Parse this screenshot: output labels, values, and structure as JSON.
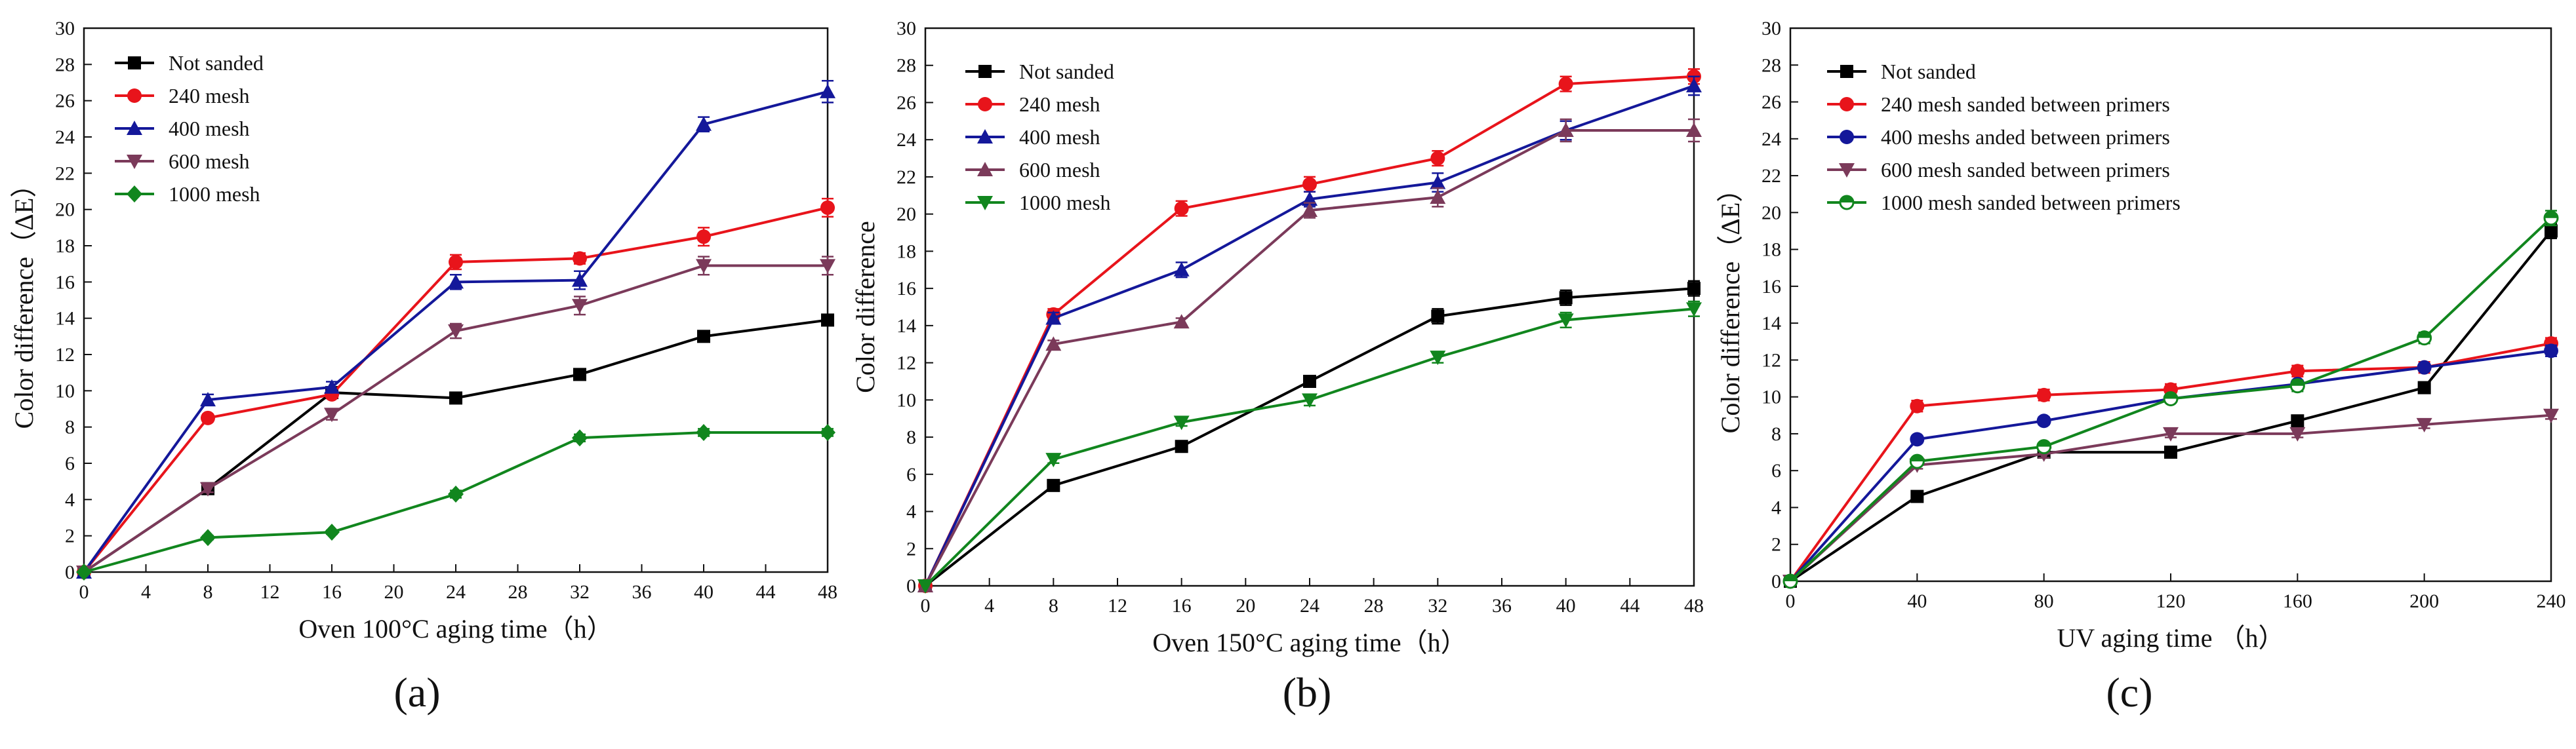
{
  "chart_data": [
    {
      "type": "line",
      "panel_label": "(a)",
      "xlabel": "Oven 100°C aging time（h）",
      "ylabel": "Color difference（ΔE）",
      "xlim": [
        0,
        48
      ],
      "ylim": [
        0,
        30
      ],
      "xticks": [
        0,
        4,
        8,
        12,
        16,
        20,
        24,
        28,
        32,
        36,
        40,
        44,
        48
      ],
      "yticks": [
        0,
        2,
        4,
        6,
        8,
        10,
        12,
        14,
        16,
        18,
        20,
        22,
        24,
        26,
        28,
        30
      ],
      "legend_position": "top-left",
      "x": [
        0,
        8,
        16,
        24,
        32,
        40,
        48
      ],
      "series": [
        {
          "name": "Not sanded",
          "color": "#000000",
          "marker": "square",
          "values": [
            0,
            4.6,
            9.9,
            9.6,
            10.9,
            13.0,
            13.9
          ],
          "errors": [
            0,
            0.2,
            0.2,
            0.2,
            0.2,
            0.2,
            0.3
          ]
        },
        {
          "name": "240 mesh",
          "color": "#e8141b",
          "marker": "circle",
          "values": [
            0,
            8.5,
            9.8,
            17.1,
            17.3,
            18.5,
            20.1
          ],
          "errors": [
            0,
            0.2,
            0.2,
            0.4,
            0.3,
            0.5,
            0.5
          ]
        },
        {
          "name": "400 mesh",
          "color": "#14189a",
          "marker": "triangle-up",
          "values": [
            0,
            9.5,
            10.2,
            16.0,
            16.1,
            24.7,
            26.5
          ],
          "errors": [
            0,
            0.3,
            0.3,
            0.4,
            0.5,
            0.4,
            0.6
          ]
        },
        {
          "name": "600 mesh",
          "color": "#7b3a5a",
          "marker": "triangle-down",
          "values": [
            0,
            4.6,
            8.7,
            13.3,
            14.7,
            16.9,
            16.9
          ],
          "errors": [
            0,
            0.2,
            0.3,
            0.4,
            0.5,
            0.5,
            0.5
          ]
        },
        {
          "name": "1000 mesh",
          "color": "#11861e",
          "marker": "diamond",
          "values": [
            0,
            1.9,
            2.2,
            4.3,
            7.4,
            7.7,
            7.7
          ],
          "errors": [
            0,
            0.1,
            0.1,
            0.2,
            0.2,
            0.2,
            0.2
          ]
        }
      ]
    },
    {
      "type": "line",
      "panel_label": "(b)",
      "xlabel": "Oven 150°C aging time（h）",
      "ylabel": "Color difference",
      "xlim": [
        0,
        48
      ],
      "ylim": [
        0,
        30
      ],
      "xticks": [
        0,
        4,
        8,
        12,
        16,
        20,
        24,
        28,
        32,
        36,
        40,
        44,
        48
      ],
      "yticks": [
        0,
        2,
        4,
        6,
        8,
        10,
        12,
        14,
        16,
        18,
        20,
        22,
        24,
        26,
        28,
        30
      ],
      "legend_position": "top-left",
      "x": [
        0,
        8,
        16,
        24,
        32,
        40,
        48
      ],
      "series": [
        {
          "name": "Not sanded",
          "color": "#000000",
          "marker": "square",
          "values": [
            0,
            5.4,
            7.5,
            11.0,
            14.5,
            15.5,
            16.0
          ],
          "errors": [
            0,
            0.2,
            0.2,
            0.3,
            0.4,
            0.4,
            0.4
          ]
        },
        {
          "name": "240 mesh",
          "color": "#e8141b",
          "marker": "circle",
          "values": [
            0,
            14.6,
            20.3,
            21.6,
            23.0,
            27.0,
            27.4
          ],
          "errors": [
            0,
            0.3,
            0.4,
            0.4,
            0.4,
            0.4,
            0.4
          ]
        },
        {
          "name": "400 mesh",
          "color": "#14189a",
          "marker": "triangle-up",
          "values": [
            0,
            14.4,
            17.0,
            20.8,
            21.7,
            24.5,
            26.9
          ],
          "errors": [
            0,
            0.3,
            0.4,
            0.4,
            0.5,
            0.5,
            0.5
          ]
        },
        {
          "name": "600 mesh",
          "color": "#7b3a5a",
          "marker": "triangle-up",
          "values": [
            0,
            13.0,
            14.2,
            20.2,
            20.9,
            24.5,
            24.5
          ],
          "errors": [
            0,
            0.2,
            0.2,
            0.4,
            0.5,
            0.6,
            0.6
          ]
        },
        {
          "name": "1000 mesh",
          "color": "#11861e",
          "marker": "triangle-down",
          "values": [
            0,
            6.8,
            8.8,
            10.0,
            12.3,
            14.3,
            14.9
          ],
          "errors": [
            0,
            0.2,
            0.2,
            0.3,
            0.3,
            0.4,
            0.4
          ]
        }
      ]
    },
    {
      "type": "line",
      "panel_label": "(c)",
      "xlabel": "UV aging time （h）",
      "ylabel": "Color difference（ΔE）",
      "xlim": [
        0,
        240
      ],
      "ylim": [
        0,
        30
      ],
      "xticks": [
        0,
        40,
        80,
        120,
        160,
        200,
        240
      ],
      "yticks": [
        0,
        2,
        4,
        6,
        8,
        10,
        12,
        14,
        16,
        18,
        20,
        22,
        24,
        26,
        28,
        30
      ],
      "legend_position": "top-left",
      "x": [
        0,
        40,
        80,
        120,
        160,
        200,
        240
      ],
      "series": [
        {
          "name": "Not sanded",
          "color": "#000000",
          "marker": "square",
          "values": [
            0,
            4.6,
            7.0,
            7.0,
            8.7,
            10.5,
            19.0
          ],
          "errors": [
            0,
            0.2,
            0.2,
            0.2,
            0.2,
            0.3,
            0.4
          ]
        },
        {
          "name": "240 mesh sanded between primers",
          "color": "#e8141b",
          "marker": "circle",
          "values": [
            0,
            9.5,
            10.1,
            10.4,
            11.4,
            11.6,
            12.9
          ],
          "errors": [
            0,
            0.3,
            0.3,
            0.3,
            0.3,
            0.3,
            0.3
          ]
        },
        {
          "name": "400 meshs anded between primers",
          "color": "#14189a",
          "marker": "circle",
          "values": [
            0,
            7.7,
            8.7,
            9.9,
            10.7,
            11.6,
            12.5
          ],
          "errors": [
            0,
            0.2,
            0.2,
            0.2,
            0.2,
            0.2,
            0.3
          ]
        },
        {
          "name": "600 mesh sanded between primers",
          "color": "#7b3a5a",
          "marker": "triangle-down",
          "values": [
            0,
            6.3,
            6.9,
            8.0,
            8.0,
            8.5,
            9.0
          ],
          "errors": [
            0,
            0.2,
            0.2,
            0.2,
            0.2,
            0.2,
            0.2
          ]
        },
        {
          "name": "1000 mesh sanded between primers",
          "color": "#11861e",
          "marker": "half-circle",
          "values": [
            0,
            6.5,
            7.3,
            9.9,
            10.6,
            13.2,
            19.7
          ],
          "errors": [
            0,
            0.2,
            0.2,
            0.2,
            0.3,
            0.3,
            0.4
          ]
        }
      ]
    }
  ]
}
